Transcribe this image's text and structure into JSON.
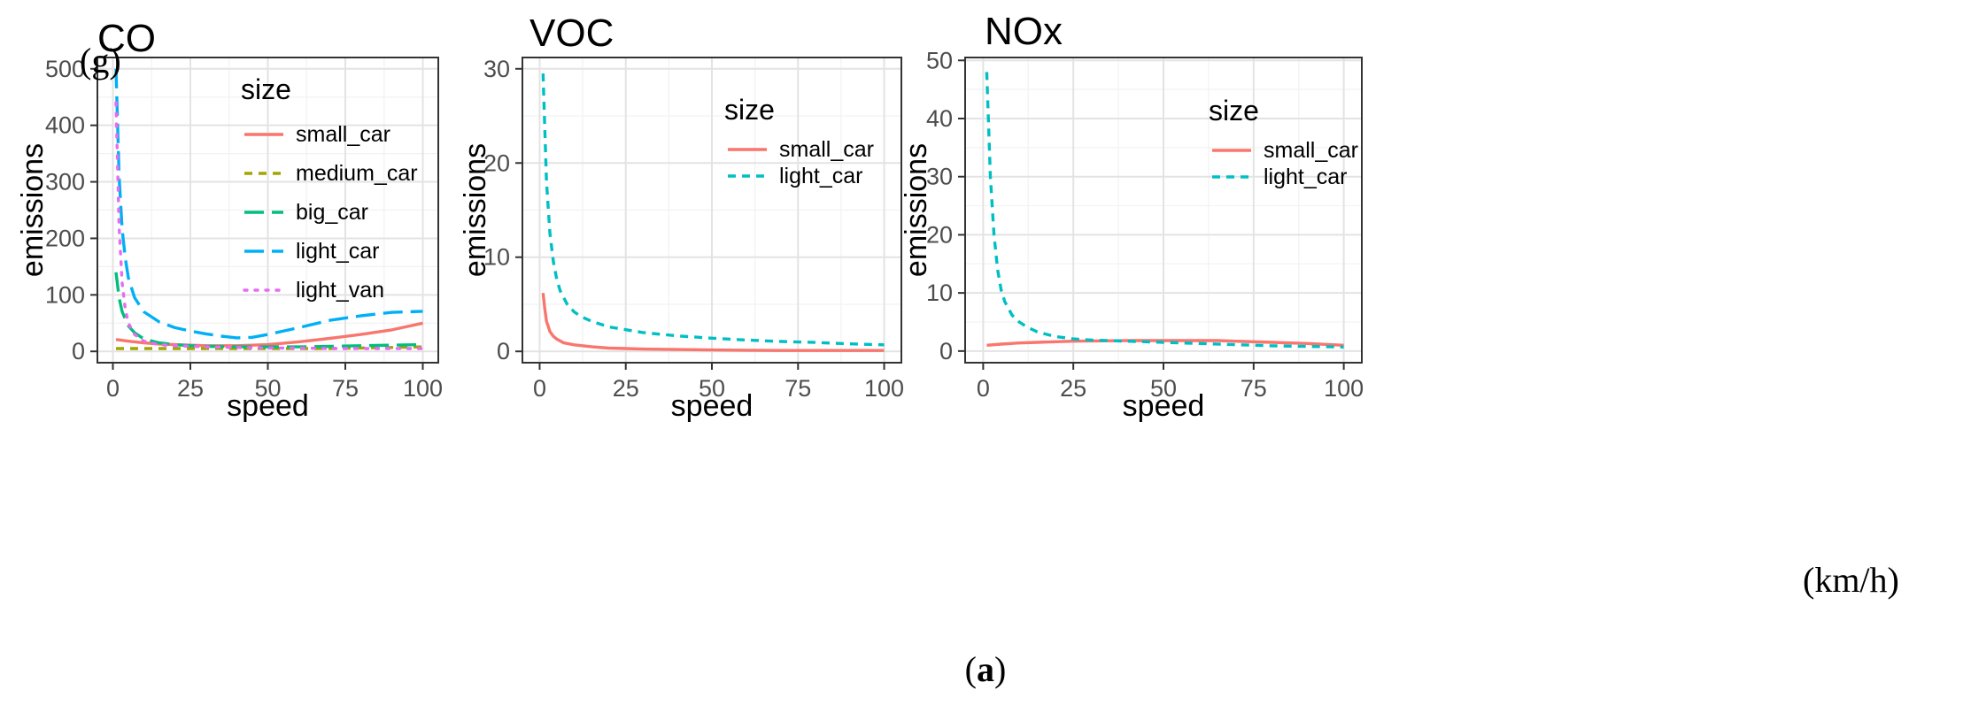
{
  "figure": {
    "y_unit": "(g)",
    "x_unit": "(km/h)",
    "caption_open": "(",
    "caption_letter": "a",
    "caption_close": ")"
  },
  "chart_data": [
    {
      "type": "line",
      "title": "CO",
      "xlabel": "speed",
      "ylabel": "emissions",
      "xlim": [
        -5,
        105
      ],
      "ylim": [
        -20,
        520
      ],
      "xticks": [
        0,
        25,
        50,
        75,
        100
      ],
      "yticks": [
        0,
        100,
        200,
        300,
        400,
        500
      ],
      "legend_title": "size",
      "series": [
        {
          "name": "small_car",
          "color": "#F8766D",
          "dash": "solid",
          "x": [
            1,
            5,
            10,
            15,
            20,
            25,
            30,
            40,
            50,
            60,
            70,
            80,
            90,
            100
          ],
          "y": [
            21,
            18,
            15,
            13,
            12,
            11,
            10,
            10,
            12,
            17,
            23,
            30,
            38,
            50
          ]
        },
        {
          "name": "medium_car",
          "color": "#A3A500",
          "dash": "short-dash",
          "x": [
            1,
            5,
            10,
            20,
            30,
            40,
            50,
            60,
            70,
            80,
            90,
            100
          ],
          "y": [
            5,
            5,
            5,
            5,
            5,
            5,
            5,
            5,
            5,
            6,
            7,
            8
          ]
        },
        {
          "name": "big_car",
          "color": "#00BF7D",
          "dash": "long-dash",
          "x": [
            1,
            2,
            3,
            5,
            7,
            10,
            15,
            20,
            25,
            30,
            40,
            50,
            60,
            70,
            80,
            90,
            100
          ],
          "y": [
            140,
            95,
            70,
            45,
            33,
            22,
            15,
            12,
            10,
            9,
            8,
            8,
            8,
            9,
            10,
            11,
            12
          ]
        },
        {
          "name": "light_car",
          "color": "#00B0F6",
          "dash": "long-dash",
          "x": [
            1,
            2,
            3,
            4,
            5,
            7,
            10,
            15,
            20,
            25,
            30,
            35,
            40,
            45,
            50,
            60,
            70,
            80,
            90,
            100
          ],
          "y": [
            500,
            310,
            215,
            165,
            130,
            95,
            70,
            52,
            42,
            36,
            31,
            27,
            24,
            25,
            30,
            42,
            55,
            63,
            69,
            71
          ]
        },
        {
          "name": "light_van",
          "color": "#E76BF3",
          "dash": "dotted",
          "x": [
            1,
            2,
            3,
            4,
            5,
            7,
            10,
            15,
            20,
            30,
            40,
            50,
            60,
            70,
            80,
            90,
            100
          ],
          "y": [
            440,
            220,
            120,
            75,
            50,
            30,
            18,
            12,
            10,
            8,
            7,
            6,
            6,
            5,
            5,
            5,
            5
          ]
        }
      ]
    },
    {
      "type": "line",
      "title": "VOC",
      "xlabel": "speed",
      "ylabel": "emissions",
      "xlim": [
        -5,
        105
      ],
      "ylim": [
        -1.2,
        31.2
      ],
      "xticks": [
        0,
        25,
        50,
        75,
        100
      ],
      "yticks": [
        0,
        10,
        20,
        30
      ],
      "legend_title": "size",
      "series": [
        {
          "name": "small_car",
          "color": "#F8766D",
          "dash": "solid",
          "x": [
            1,
            1.5,
            2,
            3,
            4,
            5,
            7,
            10,
            15,
            20,
            25,
            30,
            40,
            50,
            60,
            70,
            80,
            90,
            100
          ],
          "y": [
            6.2,
            4.5,
            3.2,
            2.1,
            1.6,
            1.3,
            0.9,
            0.7,
            0.5,
            0.35,
            0.3,
            0.25,
            0.2,
            0.15,
            0.12,
            0.1,
            0.1,
            0.1,
            0.1
          ]
        },
        {
          "name": "light_car",
          "color": "#00BFC4",
          "dash": "short-dash",
          "x": [
            1,
            2,
            3,
            4,
            5,
            6,
            8,
            10,
            12,
            15,
            20,
            25,
            30,
            40,
            50,
            60,
            70,
            80,
            90,
            100
          ],
          "y": [
            29.5,
            18,
            12.5,
            9.5,
            7.6,
            6.4,
            5,
            4.2,
            3.7,
            3.2,
            2.6,
            2.3,
            2.0,
            1.65,
            1.4,
            1.2,
            1.05,
            0.95,
            0.8,
            0.7
          ]
        }
      ]
    },
    {
      "type": "line",
      "title": "NOx",
      "xlabel": "speed",
      "ylabel": "emissions",
      "xlim": [
        -5,
        105
      ],
      "ylim": [
        -2,
        50.5
      ],
      "xticks": [
        0,
        25,
        50,
        75,
        100
      ],
      "yticks": [
        0,
        10,
        20,
        30,
        40,
        50
      ],
      "legend_title": "size",
      "series": [
        {
          "name": "small_car",
          "color": "#F8766D",
          "dash": "solid",
          "x": [
            1,
            5,
            10,
            15,
            20,
            25,
            30,
            40,
            50,
            60,
            65,
            70,
            80,
            90,
            100
          ],
          "y": [
            1.0,
            1.2,
            1.4,
            1.5,
            1.6,
            1.7,
            1.75,
            1.8,
            1.8,
            1.8,
            1.8,
            1.7,
            1.5,
            1.3,
            1.0
          ]
        },
        {
          "name": "light_car",
          "color": "#00BFC4",
          "dash": "short-dash",
          "x": [
            1,
            2,
            3,
            4,
            5,
            6,
            8,
            10,
            12,
            15,
            20,
            25,
            30,
            40,
            50,
            60,
            70,
            80,
            90,
            100
          ],
          "y": [
            48,
            30,
            20,
            14,
            10.5,
            8.5,
            6.2,
            5,
            4.2,
            3.3,
            2.5,
            2.1,
            1.9,
            1.7,
            1.5,
            1.3,
            1.1,
            0.9,
            0.8,
            0.7
          ]
        }
      ]
    }
  ]
}
